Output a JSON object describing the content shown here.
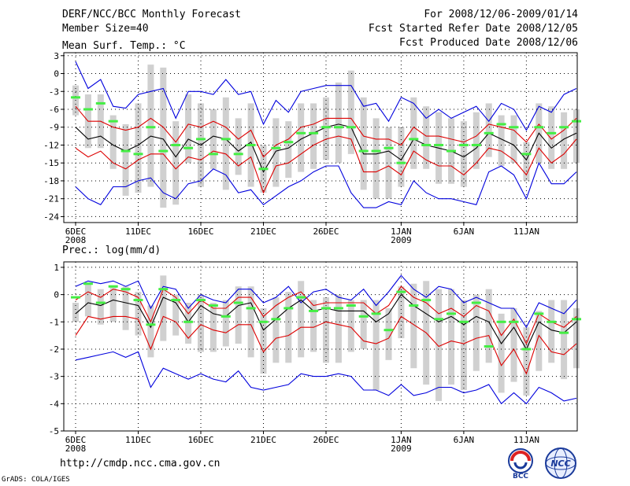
{
  "header": {
    "title": "DERF/NCC/BCC Monthly Forecast",
    "member_size": "Member Size=40",
    "period": "For 2008/12/06-2009/01/14",
    "started": "Fcst Started Refer Date 2008/12/05",
    "produced": "Fcst Produced Date 2008/12/06"
  },
  "footer": {
    "url": "http://cmdp.ncc.cma.gov.cn",
    "grads": "GrADS: COLA/IGES",
    "logo_bcc": "BCC",
    "logo_ncc": "NCC"
  },
  "colors": {
    "envelope": "#0000dd",
    "spread": "#dd0000",
    "mean": "#000000",
    "box": "#d0d0d0",
    "obs": "#44ee44"
  },
  "chart_data": [
    {
      "type": "ensemble-box",
      "title": "Mean Surf. Temp.: °C",
      "ylim": [
        -25,
        3.5
      ],
      "yticks": [
        3,
        0,
        -3,
        -6,
        -9,
        -12,
        -15,
        -18,
        -21,
        -24
      ],
      "xticks": [
        {
          "day": 0,
          "label": "6DEC",
          "sub": "2008"
        },
        {
          "day": 5,
          "label": "11DEC",
          "sub": ""
        },
        {
          "day": 10,
          "label": "16DEC",
          "sub": ""
        },
        {
          "day": 15,
          "label": "21DEC",
          "sub": ""
        },
        {
          "day": 20,
          "label": "26DEC",
          "sub": ""
        },
        {
          "day": 26,
          "label": "1JAN",
          "sub": "2009"
        },
        {
          "day": 31,
          "label": "6JAN",
          "sub": ""
        },
        {
          "day": 36,
          "label": "11JAN",
          "sub": ""
        }
      ],
      "max": [
        2,
        -2.5,
        -1,
        -5.5,
        -5.8,
        -3.5,
        -3,
        -2.5,
        -7.5,
        -3,
        -3,
        -3.5,
        -1,
        -3.5,
        -3,
        -8.5,
        -4.5,
        -6.5,
        -3,
        -2.5,
        -2,
        -2,
        -2,
        -5.5,
        -5,
        -8,
        -4,
        -5,
        -7.5,
        -6,
        -7.5,
        -6.5,
        -5.5,
        -8,
        -5,
        -6,
        -9.5,
        -5.5,
        -6.5,
        -3.5,
        -2.5
      ],
      "spread_hi": [
        -5.5,
        -8,
        -8,
        -9,
        -9.5,
        -9,
        -7.5,
        -9,
        -11.5,
        -8.5,
        -9,
        -8,
        -9,
        -11,
        -9.5,
        -14,
        -12,
        -11,
        -9,
        -8.5,
        -7.5,
        -7.5,
        -7.5,
        -10.5,
        -11,
        -11,
        -12,
        -9,
        -10.5,
        -10.5,
        -11,
        -11.5,
        -10.5,
        -8.5,
        -9,
        -9.5,
        -11.5,
        -8.5,
        -11,
        -9.5,
        -7.5
      ],
      "mean": [
        -9,
        -11,
        -10.5,
        -12,
        -13,
        -12,
        -10.5,
        -11,
        -14,
        -11,
        -12,
        -10.5,
        -11,
        -13,
        -11.5,
        -16.5,
        -13,
        -12.5,
        -11,
        -10,
        -9,
        -8.5,
        -9,
        -13.5,
        -13.5,
        -13,
        -14.5,
        -11,
        -12,
        -12.5,
        -13,
        -14,
        -12.5,
        -10,
        -11,
        -12,
        -14.5,
        -10,
        -12.5,
        -11,
        -10
      ],
      "spread_lo": [
        -12.5,
        -14,
        -13,
        -15,
        -16,
        -14.5,
        -13.5,
        -13.5,
        -16,
        -14,
        -14.5,
        -13,
        -13.5,
        -15.5,
        -14,
        -20,
        -15.5,
        -15,
        -13.5,
        -12,
        -11,
        -10.5,
        -11,
        -16.5,
        -16.5,
        -15.5,
        -17,
        -13,
        -14.5,
        -15.5,
        -15.5,
        -17,
        -15,
        -12.5,
        -13,
        -14.5,
        -17,
        -12.5,
        -15,
        -13.5,
        -11
      ],
      "min": [
        -19,
        -21,
        -22,
        -19,
        -19,
        -18,
        -17.5,
        -20,
        -21,
        -18.5,
        -18,
        -16,
        -17,
        -20,
        -19.5,
        -22,
        -20.5,
        -19,
        -18,
        -16.5,
        -15.5,
        -15.5,
        -20,
        -22.5,
        -22.5,
        -21.5,
        -22,
        -18,
        -20,
        -21,
        -21,
        -21.5,
        -22,
        -16.5,
        -15.5,
        -17,
        -21,
        -15,
        -18.5,
        -18.5,
        -16.5
      ],
      "box_hi": [
        -2,
        -3.5,
        -3.5,
        -7,
        -8.5,
        -5,
        1.5,
        1,
        -8,
        -3.5,
        -5,
        -6,
        -4,
        -7.5,
        -5,
        -12,
        -7.5,
        -8,
        -5,
        -5,
        -4,
        -1.5,
        0.5,
        -4,
        -7.5,
        -9,
        -9,
        -4,
        -5.5,
        -6.5,
        -7.5,
        -8,
        -6.5,
        -5,
        -7,
        -7,
        -11.5,
        -5,
        -5.5,
        -6.5,
        -6
      ],
      "box_lo": [
        -7,
        -12.5,
        -12.5,
        -16,
        -20.5,
        -20,
        -19,
        -22.5,
        -22,
        -15,
        -19,
        -16,
        -19.5,
        -17,
        -19,
        -20,
        -19,
        -17.5,
        -16.5,
        -16,
        -14.5,
        -15,
        -13.5,
        -19.5,
        -21,
        -21,
        -19,
        -16,
        -16,
        -18.5,
        -18.5,
        -19,
        -16,
        -14,
        -15.5,
        -15,
        -18,
        -15,
        -16,
        -16,
        -15
      ],
      "obs": [
        -4,
        -6,
        -5,
        -8,
        -13,
        -13.5,
        -9,
        -13,
        -12,
        -12.5,
        -11,
        -13.5,
        -11,
        -13.5,
        -12,
        -16,
        -12.5,
        -11.5,
        -10,
        -10,
        -9,
        -9,
        -9,
        -13,
        -13,
        -12.5,
        -15,
        -11,
        -12,
        -12,
        -13,
        -12,
        -12,
        -10,
        -8.5,
        -9,
        -13.5,
        -9,
        -10,
        -9,
        -8
      ]
    },
    {
      "type": "ensemble-box",
      "title": "Prec.: log(mm/d)",
      "ylim": [
        -5,
        1.2
      ],
      "yticks": [
        1,
        0,
        -1,
        -2,
        -3,
        -4,
        -5
      ],
      "xticks": [
        {
          "day": 0,
          "label": "6DEC",
          "sub": "2008"
        },
        {
          "day": 5,
          "label": "11DEC",
          "sub": ""
        },
        {
          "day": 10,
          "label": "16DEC",
          "sub": ""
        },
        {
          "day": 15,
          "label": "21DEC",
          "sub": ""
        },
        {
          "day": 20,
          "label": "26DEC",
          "sub": ""
        },
        {
          "day": 26,
          "label": "1JAN",
          "sub": "2009"
        },
        {
          "day": 31,
          "label": "6JAN",
          "sub": ""
        },
        {
          "day": 36,
          "label": "11JAN",
          "sub": ""
        }
      ],
      "max": [
        0.3,
        0.5,
        0.4,
        0.5,
        0.3,
        0.5,
        -0.5,
        0.3,
        0.2,
        -0.5,
        0,
        -0.2,
        -0.3,
        0.2,
        0.2,
        -0.3,
        -0.1,
        0.3,
        -0.3,
        0.1,
        0.2,
        -0.1,
        -0.2,
        0.2,
        -0.4,
        0.1,
        0.7,
        0.2,
        -0.1,
        0.3,
        0.2,
        -0.3,
        -0.1,
        -0.3,
        -0.5,
        -0.5,
        -1.2,
        -0.3,
        -0.5,
        -0.7,
        -0.2
      ],
      "spread_hi": [
        -0.2,
        0.1,
        -0.1,
        0.2,
        0.1,
        -0.1,
        -1,
        0.2,
        -0.1,
        -0.7,
        -0.2,
        -0.5,
        -0.5,
        -0.1,
        -0.1,
        -0.8,
        -0.4,
        -0.1,
        0.1,
        -0.4,
        -0.3,
        -0.3,
        -0.3,
        -0.3,
        -0.7,
        -0.4,
        0.3,
        -0.1,
        -0.3,
        -0.7,
        -0.5,
        -0.8,
        -0.4,
        -0.6,
        -1.5,
        -0.9,
        -1.8,
        -0.7,
        -1,
        -1.2,
        -0.8
      ],
      "mean": [
        -0.7,
        -0.3,
        -0.4,
        -0.2,
        -0.3,
        -0.4,
        -1.2,
        -0.1,
        -0.3,
        -1,
        -0.4,
        -0.7,
        -0.8,
        -0.4,
        -0.3,
        -1.3,
        -0.9,
        -0.5,
        -0.2,
        -0.6,
        -0.5,
        -0.6,
        -0.6,
        -0.6,
        -1,
        -0.7,
        0,
        -0.4,
        -0.7,
        -1,
        -0.8,
        -1.1,
        -0.8,
        -1,
        -1.8,
        -1.2,
        -2,
        -1,
        -1.3,
        -1.4,
        -1
      ],
      "spread_lo": [
        -1.5,
        -0.8,
        -0.9,
        -0.8,
        -0.8,
        -0.9,
        -2,
        -0.8,
        -1,
        -1.6,
        -1.1,
        -1.3,
        -1.4,
        -1.1,
        -1.1,
        -2.1,
        -1.6,
        -1.5,
        -1.2,
        -1.2,
        -1,
        -1.1,
        -1.2,
        -1.7,
        -1.8,
        -1.6,
        -0.8,
        -1.1,
        -1.4,
        -1.9,
        -1.7,
        -1.8,
        -1.6,
        -1.5,
        -2.6,
        -2,
        -2.9,
        -1.5,
        -2.1,
        -2.2,
        -1.8
      ],
      "min": [
        -2.4,
        -2.3,
        -2.2,
        -2.1,
        -2.3,
        -2.1,
        -3.4,
        -2.7,
        -2.9,
        -3.1,
        -2.9,
        -3.1,
        -3.2,
        -2.8,
        -3.4,
        -3.5,
        -3.4,
        -3.3,
        -2.9,
        -3,
        -3,
        -2.9,
        -3,
        -3.5,
        -3.5,
        -3.7,
        -3.3,
        -3.7,
        -3.6,
        -3.4,
        -3.4,
        -3.6,
        -3.5,
        -3.3,
        -4,
        -3.6,
        -4,
        -3.4,
        -3.6,
        -3.9,
        -3.8
      ],
      "box_hi": [
        -0.3,
        0.4,
        0.2,
        0.3,
        0.3,
        0.1,
        -0.4,
        0.7,
        0,
        -0.3,
        0,
        -0.3,
        -0.2,
        0.3,
        0.3,
        -0.5,
        -0.1,
        0.1,
        0.5,
        -0.2,
        -0.1,
        0,
        -0.2,
        -0.2,
        -0.2,
        -0.5,
        0.3,
        0.4,
        0.5,
        0.2,
        0.2,
        -0.2,
        0,
        0.2,
        -0.7,
        -0.5,
        -1.2,
        -0.6,
        -0.2,
        -0.2,
        -0.5
      ],
      "box_lo": [
        -1,
        -0.8,
        -1.1,
        -1,
        -1.3,
        -1.5,
        -2.3,
        -1.7,
        -1.5,
        -1.8,
        -2.1,
        -2.1,
        -1.9,
        -1.8,
        -2.3,
        -2.9,
        -2.5,
        -2.5,
        -2.3,
        -2.1,
        -2.5,
        -2.5,
        -2.1,
        -2,
        -3.5,
        -2.4,
        -1.6,
        -2.7,
        -3.3,
        -3.9,
        -3.3,
        -3.5,
        -2.8,
        -2.5,
        -3.6,
        -3.2,
        -3.7,
        -2.8,
        -2.5,
        -3.1,
        -2.7
      ],
      "obs": [
        -0.1,
        0.4,
        -0.3,
        0.3,
        0.2,
        -0.2,
        -1.1,
        0.2,
        -0.2,
        -1,
        -0.2,
        -0.4,
        -0.8,
        -0.3,
        -0.5,
        -1,
        -0.9,
        -0.5,
        -0.1,
        -0.6,
        -0.5,
        -0.5,
        -0.4,
        -0.8,
        -0.7,
        -1.3,
        0.1,
        -0.4,
        -0.2,
        -0.9,
        -0.7,
        -1,
        -0.3,
        -1.9,
        -1,
        -1,
        -2,
        -0.7,
        -1,
        -1.4,
        -0.9
      ]
    }
  ]
}
